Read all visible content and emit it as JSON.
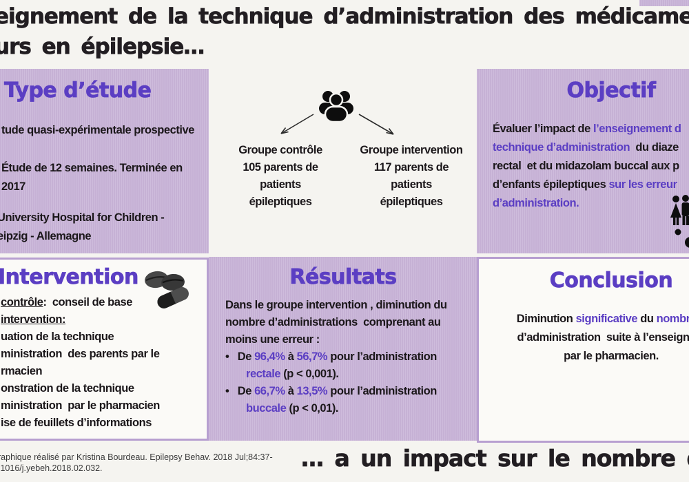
{
  "colors": {
    "background": "#f5f4f0",
    "box_purple": "#c9b4d8",
    "accent_purple": "#5b3ec3",
    "border_purple": "#b79fd0",
    "text_dark": "#1b171a"
  },
  "header": {
    "line1": "eignement de la technique d’administration des médicaments d",
    "line2": "urs en épilepsie…"
  },
  "study": {
    "heading": "Type d’étude",
    "p1": [
      {
        "segs": [
          {
            "t": "tude quasi-expérimentale prospective",
            "c": "k"
          }
        ]
      }
    ],
    "p2": [
      {
        "segs": [
          {
            "t": "Étude de 12 semaines. Terminée en",
            "c": "k"
          }
        ]
      },
      {
        "segs": [
          {
            "t": "2017",
            "c": "k"
          }
        ]
      }
    ],
    "p3": [
      {
        "segs": [
          {
            "t": "University Hospital for Children -",
            "c": "k"
          }
        ]
      },
      {
        "segs": [
          {
            "t": "eipzig - Allemagne",
            "c": "k"
          }
        ]
      }
    ]
  },
  "groups": {
    "icon": "people-group-icon",
    "left": [
      {
        "segs": [
          {
            "t": "Groupe contrôle",
            "c": "k"
          }
        ]
      },
      {
        "segs": [
          {
            "t": "105 parents de",
            "c": "k"
          }
        ]
      },
      {
        "segs": [
          {
            "t": "patients",
            "c": "k"
          }
        ]
      },
      {
        "segs": [
          {
            "t": "épileptiques",
            "c": "k"
          }
        ]
      }
    ],
    "right": [
      {
        "segs": [
          {
            "t": "Groupe intervention",
            "c": "k"
          }
        ]
      },
      {
        "segs": [
          {
            "t": "117 parents de",
            "c": "k"
          }
        ]
      },
      {
        "segs": [
          {
            "t": "patients",
            "c": "k"
          }
        ]
      },
      {
        "segs": [
          {
            "t": "épileptiques",
            "c": "k"
          }
        ]
      }
    ]
  },
  "objective": {
    "heading": "Objectif",
    "lines": [
      {
        "segs": [
          {
            "t": "Évaluer l’impact de ",
            "c": "k"
          },
          {
            "t": "l’enseignement d",
            "c": "p"
          }
        ]
      },
      {
        "segs": [
          {
            "t": "technique d’administration ",
            "c": "p"
          },
          {
            "t": " du diaze",
            "c": "k"
          }
        ]
      },
      {
        "segs": [
          {
            "t": "rectal  et du midazolam buccal aux p",
            "c": "k"
          }
        ]
      },
      {
        "segs": [
          {
            "t": "d’enfants épileptiques ",
            "c": "k"
          },
          {
            "t": "sur les erreur",
            "c": "p"
          }
        ]
      },
      {
        "segs": [
          {
            "t": "d’administration.",
            "c": "p"
          }
        ]
      }
    ]
  },
  "intervention": {
    "heading": "Intervention",
    "lines": [
      {
        "segs": [
          {
            "t": "contrôle",
            "c": "u"
          },
          {
            "t": ":  conseil de base",
            "c": "k"
          }
        ]
      },
      {
        "segs": [
          {
            "t": "intervention:",
            "c": "u"
          }
        ]
      },
      {
        "segs": [
          {
            "t": "uation de la technique",
            "c": "k"
          }
        ]
      },
      {
        "segs": [
          {
            "t": "ministration  des parents par le",
            "c": "k"
          }
        ]
      },
      {
        "segs": [
          {
            "t": "rmacien",
            "c": "k"
          }
        ]
      },
      {
        "segs": [
          {
            "t": "onstration de la technique",
            "c": "k"
          }
        ]
      },
      {
        "segs": [
          {
            "t": "ministration  par le pharmacien",
            "c": "k"
          }
        ]
      },
      {
        "segs": [
          {
            "t": "ise de feuillets d’informations",
            "c": "k"
          }
        ]
      }
    ]
  },
  "results": {
    "heading": "Résultats",
    "lines": [
      {
        "segs": [
          {
            "t": "Dans le groupe intervention , diminution du",
            "c": "k"
          }
        ]
      },
      {
        "segs": [
          {
            "t": "nombre d’administrations  comprenant au",
            "c": "k"
          }
        ]
      },
      {
        "segs": [
          {
            "t": "moins une erreur :",
            "c": "k"
          }
        ]
      },
      {
        "segs": [
          {
            "t": "•   De ",
            "c": "k"
          },
          {
            "t": "96,4%",
            "c": "p"
          },
          {
            "t": " à ",
            "c": "k"
          },
          {
            "t": "56,7%",
            "c": "p"
          },
          {
            "t": " pour l’administration",
            "c": "k"
          }
        ]
      },
      {
        "ind": 1,
        "segs": [
          {
            "t": "rectale",
            "c": "p"
          },
          {
            "t": " (p < 0,001).",
            "c": "k"
          }
        ]
      },
      {
        "segs": [
          {
            "t": "•   De ",
            "c": "k"
          },
          {
            "t": "66,7%",
            "c": "p"
          },
          {
            "t": " à ",
            "c": "k"
          },
          {
            "t": "13,5%",
            "c": "p"
          },
          {
            "t": " pour l’administration",
            "c": "k"
          }
        ]
      },
      {
        "ind": 1,
        "segs": [
          {
            "t": "buccale",
            "c": "p"
          },
          {
            "t": " (p < 0,01).",
            "c": "k"
          }
        ]
      }
    ]
  },
  "conclusion": {
    "heading": "Conclusion",
    "lines": [
      {
        "segs": [
          {
            "t": "Diminution ",
            "c": "k"
          },
          {
            "t": "significative",
            "c": "p"
          },
          {
            "t": " du ",
            "c": "k"
          },
          {
            "t": "nombre d",
            "c": "p"
          }
        ]
      },
      {
        "segs": [
          {
            "t": "d’administration  suite à l’enseignem",
            "c": "k"
          }
        ]
      },
      {
        "segs": [
          {
            "t": "par le pharmacien.",
            "c": "k"
          }
        ]
      }
    ]
  },
  "footer": {
    "citation_line1": "raphique réalisé par Kristina Bourdeau. Epilepsy Behav. 2018 Jul;84:37-",
    "citation_line2": ".1016/j.yebeh.2018.02.032.",
    "title": "… a un impact sur le nombre d’erre"
  }
}
